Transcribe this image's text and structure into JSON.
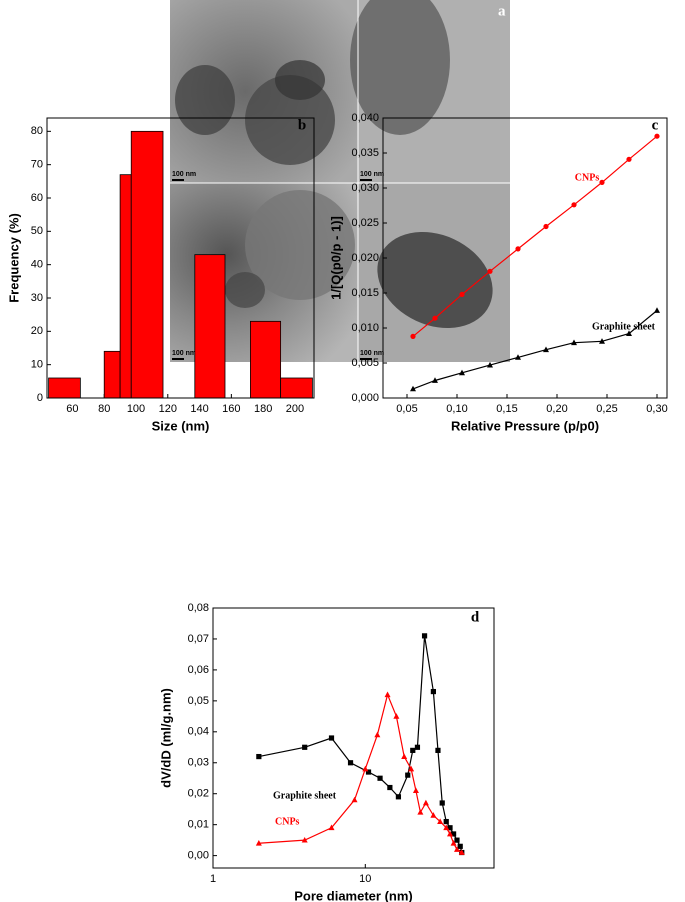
{
  "panel_a": {
    "label": "a",
    "scale_bars": [
      "100 nm",
      "100 nm",
      "100 nm",
      "100 nm"
    ]
  },
  "chart_data": [
    {
      "type": "histogram",
      "panel_label": "b",
      "x_label": "Size (nm)",
      "y_label": "Frequency (%)",
      "color": "#ff0000",
      "bins": [
        45,
        65,
        80,
        90,
        97,
        117,
        137,
        156,
        172,
        191,
        211
      ],
      "counts": [
        6,
        0,
        14,
        67,
        80,
        0,
        43,
        0,
        23,
        6
      ],
      "xlim": [
        44,
        212
      ],
      "xticks": [
        60,
        80,
        100,
        120,
        140,
        160,
        180,
        200
      ],
      "ylim": [
        0,
        84
      ],
      "yticks": [
        0,
        10,
        20,
        30,
        40,
        50,
        60,
        70,
        80
      ]
    },
    {
      "type": "line",
      "panel_label": "c",
      "x_label": "Relative Pressure (p/p0)",
      "y_label": "1/[Q(p0/p - 1)]",
      "xlim": [
        0.026,
        0.31
      ],
      "xticks": [
        {
          "value": 0.05,
          "label": "0,05"
        },
        {
          "value": 0.1,
          "label": "0,10"
        },
        {
          "value": 0.15,
          "label": "0,15"
        },
        {
          "value": 0.2,
          "label": "0,20"
        },
        {
          "value": 0.25,
          "label": "0,25"
        },
        {
          "value": 0.3,
          "label": "0,30"
        }
      ],
      "ylim": [
        0,
        0.04
      ],
      "yticks": [
        {
          "value": 0,
          "label": "0,000"
        },
        {
          "value": 0.005,
          "label": "0,005"
        },
        {
          "value": 0.01,
          "label": "0,010"
        },
        {
          "value": 0.015,
          "label": "0,015"
        },
        {
          "value": 0.02,
          "label": "0,020"
        },
        {
          "value": 0.025,
          "label": "0,025"
        },
        {
          "value": 0.03,
          "label": "0,030"
        },
        {
          "value": 0.035,
          "label": "0,035"
        },
        {
          "value": 0.04,
          "label": "0,040"
        }
      ],
      "series": [
        {
          "name": "CNPs",
          "color": "#ff0000",
          "marker": "circle",
          "x": [
            0.056,
            0.078,
            0.105,
            0.133,
            0.161,
            0.189,
            0.217,
            0.245,
            0.272,
            0.3
          ],
          "values": [
            0.0088,
            0.0114,
            0.0148,
            0.0181,
            0.0213,
            0.0245,
            0.0276,
            0.0308,
            0.0341,
            0.0374
          ]
        },
        {
          "name": "Graphite sheet",
          "color": "#000000",
          "marker": "triangle",
          "x": [
            0.056,
            0.078,
            0.105,
            0.133,
            0.161,
            0.189,
            0.217,
            0.245,
            0.272,
            0.3
          ],
          "values": [
            0.0013,
            0.0025,
            0.0036,
            0.0047,
            0.0058,
            0.0069,
            0.0079,
            0.0081,
            0.0092,
            0.0125
          ]
        }
      ]
    },
    {
      "type": "line",
      "panel_label": "d",
      "x_label": "Pore diameter (nm)",
      "y_label": "dV/dD (ml/g.nm)",
      "xlog": true,
      "xlim": [
        1,
        70
      ],
      "xticks": [
        1,
        10
      ],
      "ylim": [
        -0.004,
        0.08
      ],
      "yticks": [
        {
          "value": 0,
          "label": "0,00"
        },
        {
          "value": 0.01,
          "label": "0,01"
        },
        {
          "value": 0.02,
          "label": "0,02"
        },
        {
          "value": 0.03,
          "label": "0,03"
        },
        {
          "value": 0.04,
          "label": "0,04"
        },
        {
          "value": 0.05,
          "label": "0,05"
        },
        {
          "value": 0.06,
          "label": "0,06"
        },
        {
          "value": 0.07,
          "label": "0,07"
        },
        {
          "value": 0.08,
          "label": "0,08"
        }
      ],
      "series": [
        {
          "name": "Graphite sheet",
          "color": "#000000",
          "marker": "square",
          "x": [
            2,
            4,
            6,
            8,
            10.5,
            12.5,
            14.5,
            16.5,
            19,
            20.5,
            22,
            24.5,
            28,
            30,
            32,
            34,
            36,
            38,
            40,
            42,
            43
          ],
          "values": [
            0.032,
            0.035,
            0.038,
            0.03,
            0.027,
            0.025,
            0.022,
            0.019,
            0.026,
            0.034,
            0.035,
            0.071,
            0.053,
            0.034,
            0.017,
            0.011,
            0.009,
            0.007,
            0.005,
            0.003,
            0.001
          ]
        },
        {
          "name": "CNPs",
          "color": "#ff0000",
          "marker": "triangle",
          "x": [
            2,
            4,
            6,
            8.5,
            10,
            12,
            14,
            16,
            18,
            20,
            21.5,
            23,
            25,
            28,
            31,
            34,
            36,
            38,
            40,
            43
          ],
          "values": [
            0.004,
            0.005,
            0.009,
            0.018,
            0.028,
            0.039,
            0.052,
            0.045,
            0.032,
            0.028,
            0.021,
            0.014,
            0.017,
            0.013,
            0.011,
            0.009,
            0.007,
            0.004,
            0.002,
            0.001
          ]
        }
      ]
    }
  ]
}
